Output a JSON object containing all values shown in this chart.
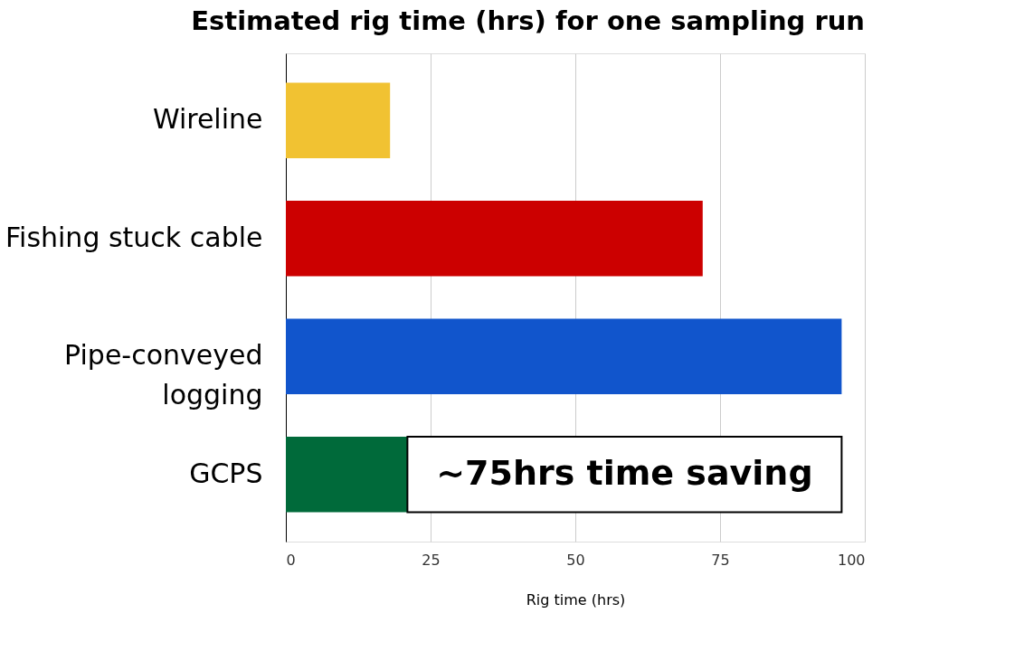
{
  "chart_data": {
    "type": "bar",
    "orientation": "horizontal",
    "title": "Estimated rig time (hrs) for one sampling run",
    "xlabel": "Rig time (hrs)",
    "categories": [
      "Wireline",
      "Fishing stuck cable",
      "Pipe-conveyed logging",
      "GCPS"
    ],
    "values": [
      18,
      72,
      96,
      21
    ],
    "colors": [
      "#f1c232",
      "#cc0000",
      "#1155cc",
      "#006a3a"
    ],
    "xlim": [
      0,
      100
    ],
    "xticks": [
      0,
      25,
      50,
      75,
      100
    ],
    "grid": "x",
    "annotations": [
      "~75hrs time saving"
    ]
  }
}
